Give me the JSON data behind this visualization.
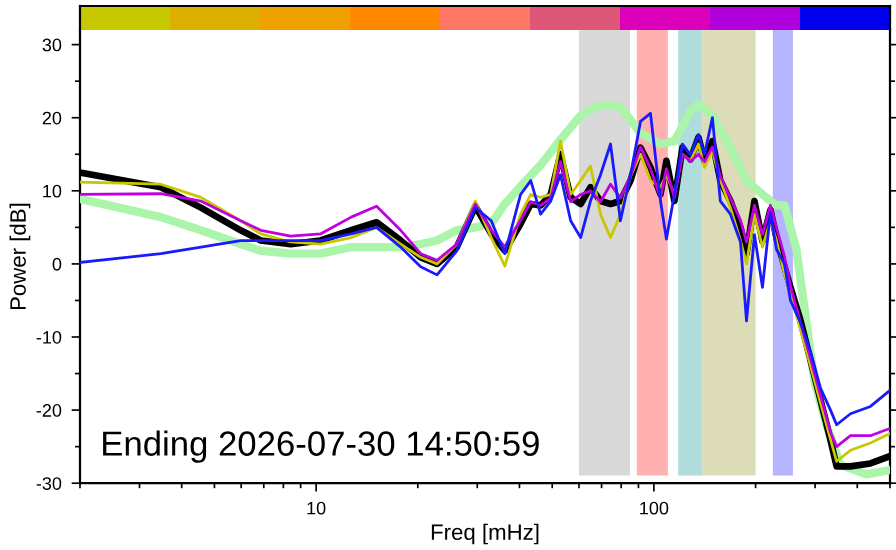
{
  "chart_data": [
    {
      "type": "line",
      "xlabel": "Freq [mHz]",
      "ylabel": "Power [dB]",
      "log": "x",
      "xlim": [
        2,
        500
      ],
      "xticks": [
        10,
        100
      ],
      "ylim": [
        -30,
        32
      ],
      "yticks": [
        -30,
        -20,
        -10,
        0,
        10,
        20,
        30
      ],
      "grid": false,
      "legend": false,
      "annotations": [
        "Ending 2026-07-30 14:50:59"
      ],
      "bands": [
        {
          "axis": "x",
          "from": 60,
          "to": 85,
          "color": "#d9d9d9"
        },
        {
          "axis": "x",
          "from": 89,
          "to": 110,
          "color": "#ffb0b0"
        },
        {
          "axis": "x",
          "from": 118,
          "to": 139,
          "color": "#b0dcdc"
        },
        {
          "axis": "x",
          "from": 139,
          "to": 200,
          "color": "#dcdcb8"
        },
        {
          "axis": "x",
          "from": 225,
          "to": 258,
          "color": "#b4b4ff"
        }
      ],
      "x": [
        2.0,
        3.47,
        4.56,
        5.98,
        6.86,
        8.41,
        10.3,
        12.7,
        15.1,
        17.8,
        20.4,
        22.8,
        26.1,
        29.6,
        33.0,
        36.2,
        40.3,
        43.2,
        46.2,
        49.5,
        52.9,
        56.7,
        60.7,
        64.9,
        69.5,
        74.4,
        79.6,
        85.3,
        91.3,
        97.7,
        104.6,
        108.9,
        115,
        121.5,
        128.3,
        135.5,
        141.2,
        149,
        157.3,
        168.5,
        180.4,
        188,
        198.5,
        209.6,
        221.3,
        230.6,
        243.6,
        253.7,
        271.6,
        290.9,
        311.3,
        333.3,
        347.5,
        382,
        437.5,
        500
      ],
      "series": [
        {
          "color": "#aaf5aa",
          "x": [
            2.0,
            3.47,
            4.56,
            5.98,
            6.86,
            8.41,
            10.3,
            12.7,
            15.1,
            17.8,
            20.4,
            22.8,
            26.1,
            29.6,
            33.0,
            36.2,
            40.3,
            46.2,
            52.9,
            60.7,
            69.5,
            79.6,
            91.3,
            104.6,
            115,
            128.3,
            135.5,
            149,
            168.5,
            188,
            209.6,
            230.6,
            243.6,
            264.2,
            282.8,
            298.6,
            324.1,
            356.4,
            425.6,
            500
          ],
          "values": [
            8.9,
            6.4,
            4.6,
            2.7,
            1.8,
            1.4,
            1.4,
            2.3,
            2.3,
            2.3,
            2.7,
            3.2,
            4.6,
            5.0,
            5.5,
            8.2,
            10.6,
            13.5,
            17,
            20.3,
            21.8,
            21.5,
            17.9,
            16.4,
            16.8,
            20.9,
            21.8,
            20.3,
            15.9,
            11.4,
            9.5,
            8,
            8,
            2,
            -8,
            -16,
            -22,
            -27.5,
            -28.8,
            -28.2
          ]
        },
        {
          "color": "#000000",
          "values": [
            12.5,
            10.5,
            7.7,
            4.6,
            3.2,
            2.7,
            3.2,
            4.6,
            5.7,
            3.2,
            0.9,
            0,
            2.3,
            7.9,
            4.1,
            1.8,
            5.5,
            8.2,
            8.0,
            9.5,
            15,
            9.1,
            8.2,
            10.5,
            8.6,
            8.2,
            8.6,
            11.4,
            15.9,
            13.2,
            9.5,
            14.1,
            8.6,
            15.9,
            14.3,
            17.3,
            14.1,
            16.8,
            11.4,
            8.6,
            5.0,
            1.4,
            8.6,
            3.1,
            7.4,
            3.6,
            -0.4,
            -3.2,
            -7.7,
            -13.2,
            -18.6,
            -24.1,
            -27.7,
            -27.7,
            -27.3,
            -26.3
          ]
        },
        {
          "color": "#c8c800",
          "values": [
            11.2,
            10.9,
            9.1,
            5.9,
            4.1,
            3.0,
            2.7,
            3.6,
            5.0,
            2.7,
            0.9,
            0,
            2.7,
            8.6,
            3.6,
            -0.3,
            6.8,
            9.5,
            9.1,
            9.5,
            16.8,
            9.5,
            11.4,
            13.4,
            6.8,
            3.6,
            6.8,
            12,
            15,
            11.4,
            10.5,
            12.2,
            9.5,
            15,
            14.1,
            16.4,
            13.2,
            15.5,
            11.4,
            7.7,
            3.2,
            0,
            6.8,
            2.3,
            5.9,
            3.2,
            -1.4,
            -4,
            -9,
            -14,
            -19,
            -24,
            -27,
            -25.5,
            -24.5,
            -23.2
          ]
        },
        {
          "color": "#c000e0",
          "values": [
            9.5,
            9.6,
            8.6,
            5.9,
            4.6,
            3.8,
            4.1,
            6.4,
            7.9,
            4.6,
            1.4,
            0.5,
            2.7,
            8.2,
            4.6,
            2.3,
            6,
            8.5,
            8,
            9,
            14,
            8.5,
            9.5,
            10,
            8.5,
            10.9,
            9,
            12,
            16,
            13,
            9,
            13,
            9,
            15,
            14,
            15,
            14,
            16,
            12,
            9,
            6,
            3,
            8,
            4,
            8,
            5,
            1,
            -3,
            -8,
            -13,
            -18,
            -23,
            -25,
            -23.5,
            -23.5,
            -22.5
          ]
        },
        {
          "color": "#1a1aff",
          "values": [
            0.2,
            1.4,
            2.3,
            3.2,
            3.2,
            3.2,
            3.2,
            4.1,
            5.0,
            2.3,
            -0.4,
            -1.5,
            1.8,
            7.7,
            5.9,
            1.4,
            9.5,
            11.4,
            6.8,
            8.6,
            12.2,
            5.9,
            3.6,
            8.6,
            12.2,
            16.4,
            5.9,
            12.2,
            19.5,
            20.6,
            8.6,
            3.4,
            9.5,
            16.4,
            14.9,
            17.7,
            15,
            20,
            8.6,
            6.8,
            3,
            -7.8,
            4,
            -3.2,
            7,
            2,
            0,
            -5,
            -8,
            -12,
            -17,
            -20,
            -22,
            -20.5,
            -19.5,
            -17.3
          ]
        }
      ]
    }
  ]
}
